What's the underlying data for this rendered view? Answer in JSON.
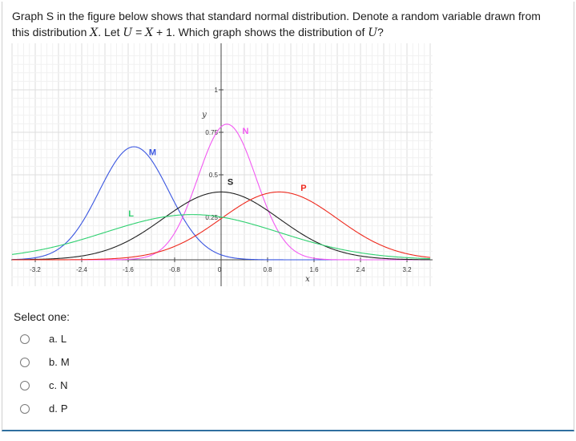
{
  "question": {
    "line1_a": "Graph S in the figure below shows that standard normal distribution. Denote a random variable drawn from",
    "line2_a": "this distribution ",
    "var_x": "X",
    "line2_b": ". Let ",
    "var_u": "U",
    "line2_c": " = ",
    "line2_d": " + 1. Which graph shows the distribution of ",
    "line2_e": "?"
  },
  "chart_data": {
    "type": "line",
    "xlim": [
      -3.6,
      3.6
    ],
    "ylim": [
      -0.1,
      0.95
    ],
    "x_ticks": [
      -3.2,
      -2.4,
      -1.6,
      -0.8,
      0,
      0.8,
      1.6,
      2.4,
      3.2
    ],
    "x_tick_labels": [
      "-3.2",
      "-2.4",
      "-1.6",
      "-0.8",
      "0",
      "0.8",
      "1.6",
      "2.4",
      "3.2"
    ],
    "y_ticks": [
      0.25,
      0.5,
      0.75,
      1
    ],
    "y_tick_labels": [
      "0.25",
      "0.5",
      "0.75",
      "1"
    ],
    "xlabel": "x",
    "ylabel": "y",
    "grid": true,
    "series": [
      {
        "name": "M",
        "mean": -1.5,
        "sd": 0.6,
        "color": "#3a56e0"
      },
      {
        "name": "N",
        "mean": 0.1,
        "sd": 0.5,
        "color": "#f25af2"
      },
      {
        "name": "S",
        "mean": 0.0,
        "sd": 1.0,
        "color": "#222222"
      },
      {
        "name": "P",
        "mean": 1.0,
        "sd": 1.0,
        "color": "#ee2a1e"
      },
      {
        "name": "L",
        "mean": -0.5,
        "sd": 1.5,
        "color": "#2fd070"
      }
    ],
    "labels": [
      {
        "text": "M",
        "x": -1.18,
        "y": 0.615,
        "color": "#3a56e0"
      },
      {
        "text": "N",
        "x": 0.42,
        "y": 0.74,
        "color": "#f25af2"
      },
      {
        "text": "S",
        "x": 0.16,
        "y": 0.44,
        "color": "#222222"
      },
      {
        "text": "P",
        "x": 1.42,
        "y": 0.405,
        "color": "#ee2a1e"
      },
      {
        "text": "L",
        "x": -1.55,
        "y": 0.255,
        "color": "#2fd070"
      }
    ]
  },
  "answer": {
    "prompt": "Select one:",
    "options": [
      {
        "letter": "a.",
        "text": "L"
      },
      {
        "letter": "b.",
        "text": "M"
      },
      {
        "letter": "c.",
        "text": "N"
      },
      {
        "letter": "d.",
        "text": "P"
      }
    ]
  }
}
